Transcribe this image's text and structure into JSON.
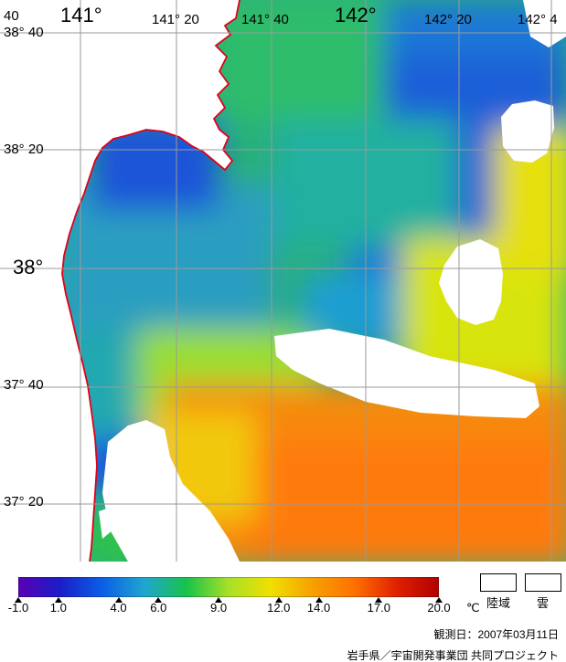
{
  "map": {
    "lat_labels": [
      {
        "text": "38° 40",
        "big": false
      },
      {
        "text": "38° 20",
        "big": false
      },
      {
        "text": "38°",
        "big": true
      },
      {
        "text": "37° 40",
        "big": false
      },
      {
        "text": "37° 20",
        "big": false
      }
    ],
    "lon_labels": [
      {
        "text": "40",
        "big": false
      },
      {
        "text": "141°",
        "big": true
      },
      {
        "text": "141° 20",
        "big": false
      },
      {
        "text": "141° 40",
        "big": false
      },
      {
        "text": "142°",
        "big": true
      },
      {
        "text": "142° 20",
        "big": false
      },
      {
        "text": "142° 4",
        "big": false
      }
    ],
    "coastline_color": "#e0001a",
    "grid_color": "#9a9a9a"
  },
  "colorbar": {
    "ticks": [
      "-1.0",
      "1.0",
      "4.0",
      "6.0",
      "9.0",
      "12.0",
      "14.0",
      "17.0",
      "20.0"
    ],
    "tick_values": [
      -1,
      1,
      4,
      6,
      9,
      12,
      14,
      17,
      20
    ],
    "min": -1,
    "max": 20,
    "unit": "℃",
    "stops": [
      "#5a00b4",
      "#1a1ec8",
      "#0a5fe6",
      "#1fa6d0",
      "#18c24a",
      "#a8e028",
      "#f0e000",
      "#f6a000",
      "#ff7000",
      "#e02000",
      "#b00000"
    ]
  },
  "legend": {
    "land_label": "陸域",
    "cloud_label": "雲"
  },
  "footer": {
    "observation_date": "観測日：2007年03月11日",
    "credit": "岩手県／宇宙開発事業団 共同プロジェクト"
  }
}
